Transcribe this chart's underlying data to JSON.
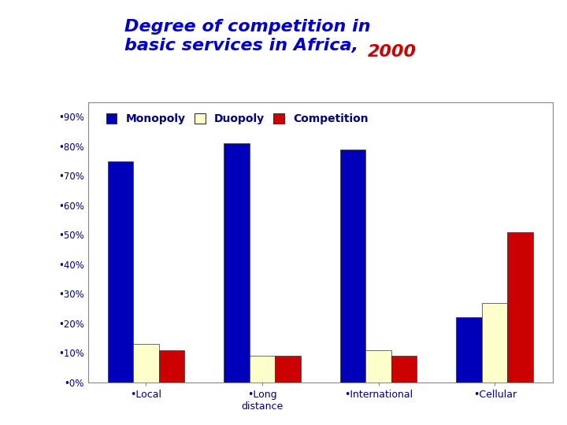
{
  "title_blue": "Degree of competition in\nbasic services in Africa, ",
  "title_red": "2000",
  "title_color": "#0000CC",
  "title_year_color": "#CC0000",
  "categories": [
    "•Local",
    "•Long\ndistance",
    "•International",
    "•Cellular"
  ],
  "monopoly": [
    75,
    81,
    79,
    22
  ],
  "duopoly": [
    13,
    9,
    11,
    27
  ],
  "competition": [
    11,
    9,
    9,
    51
  ],
  "monopoly_color": "#0000BB",
  "duopoly_color": "#FFFFCC",
  "competition_color": "#CC0000",
  "monopoly_label": "Monopoly",
  "duopoly_label": "Duopoly",
  "competition_label": "Competition",
  "ytick_vals": [
    0,
    10,
    20,
    30,
    40,
    50,
    60,
    70,
    80,
    90
  ],
  "ylim": [
    0,
    95
  ],
  "bar_width": 0.22,
  "background_color": "#FFFFFF"
}
